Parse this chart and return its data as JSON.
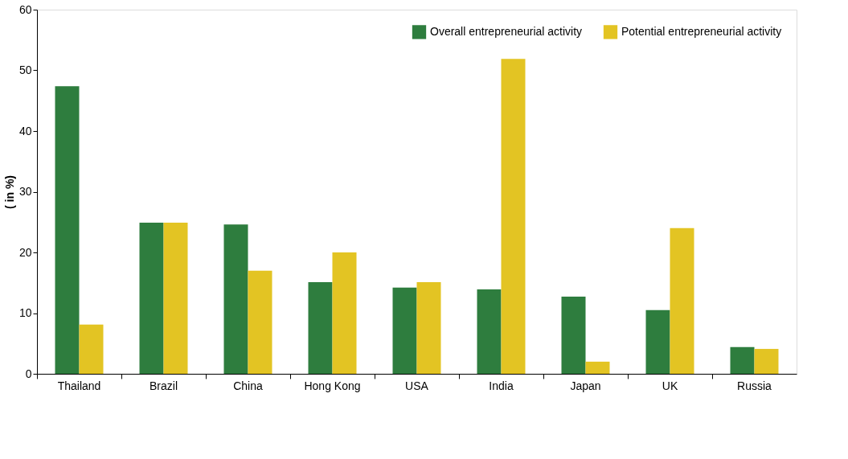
{
  "chart_data": {
    "type": "bar",
    "ylabel": "( in %)",
    "categories": [
      "Thailand",
      "Brazil",
      "China",
      "Hong Kong",
      "USA",
      "India",
      "Japan",
      "UK",
      "Russia"
    ],
    "series": [
      {
        "name": "Overall entrepreneurial activity",
        "color": "#2e7d3e",
        "values": [
          47.4,
          24.9,
          24.6,
          15.1,
          14.2,
          13.9,
          12.7,
          10.5,
          4.4
        ]
      },
      {
        "name": "Potential entrepreneurial activity",
        "color": "#e3c423",
        "values": [
          8.1,
          24.9,
          17.0,
          20.0,
          15.1,
          51.9,
          2.0,
          24.0,
          4.1
        ]
      }
    ],
    "ylim": [
      0,
      60
    ],
    "yticks": [
      0,
      10,
      20,
      30,
      40,
      50,
      60
    ],
    "grid": false,
    "legend": "top right"
  }
}
